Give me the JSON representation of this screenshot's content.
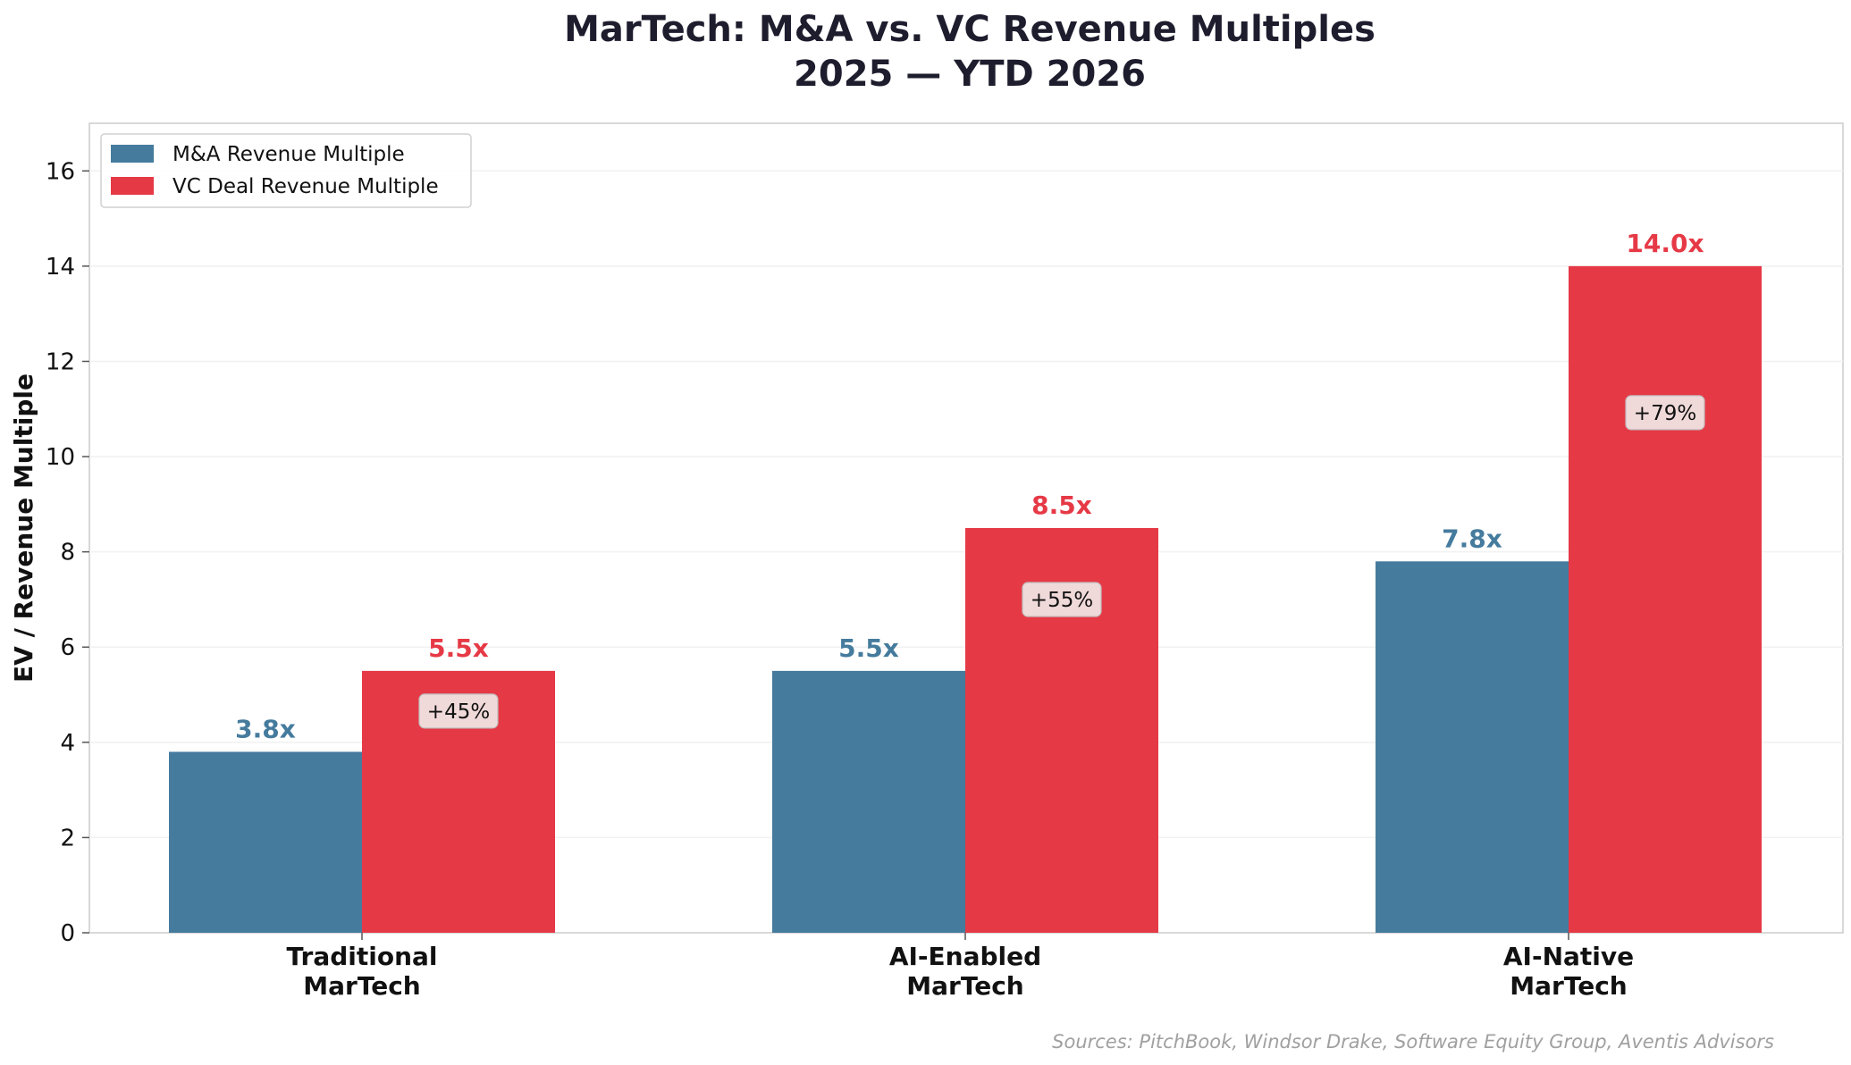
{
  "chart_data": {
    "type": "bar",
    "title": "MarTech: M&A vs. VC Revenue Multiples\n2025 — YTD 2026",
    "xlabel": "",
    "ylabel": "EV / Revenue Multiple",
    "categories": [
      "Traditional\nMarTech",
      "AI-Enabled\nMarTech",
      "AI-Native\nMarTech"
    ],
    "series": [
      {
        "name": "M&A Revenue Multiple",
        "values": [
          3.8,
          5.5,
          7.8
        ],
        "color": "#457b9d",
        "labels": [
          "3.8x",
          "5.5x",
          "7.8x"
        ]
      },
      {
        "name": "VC Deal Revenue Multiple",
        "values": [
          5.5,
          8.5,
          14.0
        ],
        "color": "#e63946",
        "labels": [
          "5.5x",
          "8.5x",
          "14.0x"
        ]
      }
    ],
    "premium_labels": [
      "+45%",
      "+55%",
      "+79%"
    ],
    "yticks": [
      0,
      2,
      4,
      6,
      8,
      10,
      12,
      14,
      16
    ],
    "ylim": [
      0,
      17
    ],
    "grid": true,
    "legend_position": "top-left",
    "source_note": "Sources: PitchBook, Windsor Drake, Software Equity Group, Aventis Advisors"
  },
  "colors": {
    "title": "#1d1d2e",
    "axis": "#cccccc",
    "tick_text": "#111111",
    "source_text": "#a0a0a0",
    "annotation_bg": "#f0e2e2"
  }
}
